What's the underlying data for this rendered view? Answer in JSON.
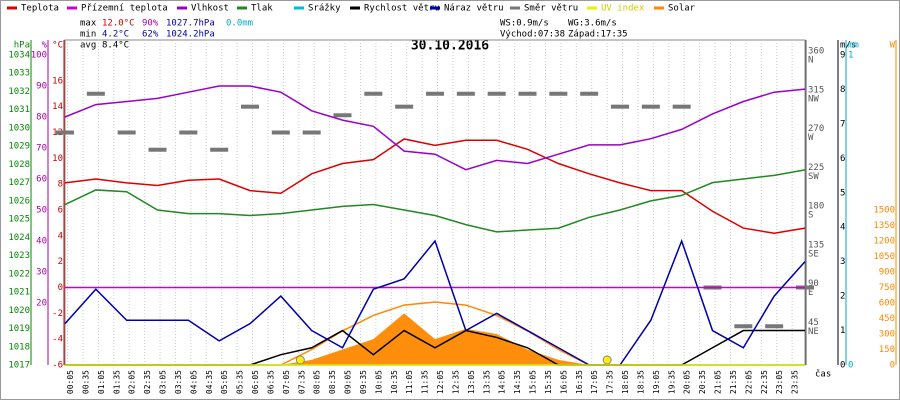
{
  "chart_data": {
    "type": "multi-line",
    "title": "30.10.2016",
    "x_label": "čas",
    "stats": {
      "max": {
        "label": "max",
        "t": "12.0°C",
        "h": "90%",
        "p": "1027.7hPa",
        "r": "0.0mm"
      },
      "min": {
        "label": "min",
        "t": "4.2°C",
        "h": "62%",
        "p": "1024.2hPa"
      },
      "avg": {
        "label": "avg",
        "t": "8.4°C"
      },
      "ws": "WS:0.9m/s",
      "wg": "WG:3.6m/s",
      "sunrise": "Východ:07:38",
      "sunset": "Západ:17:35"
    },
    "sunrise_x": 7.633,
    "sunset_x": 17.583,
    "xlim": [
      0,
      24
    ],
    "xticks": [
      {
        "value": 0.083,
        "label": "00:05"
      },
      {
        "value": 0.583,
        "label": "00:35"
      },
      {
        "value": 1.083,
        "label": "01:05"
      },
      {
        "value": 1.583,
        "label": "01:35"
      },
      {
        "value": 2.083,
        "label": "02:05"
      },
      {
        "value": 2.583,
        "label": "02:35"
      },
      {
        "value": 3.083,
        "label": "03:05"
      },
      {
        "value": 3.583,
        "label": "03:35"
      },
      {
        "value": 4.083,
        "label": "04:05"
      },
      {
        "value": 4.583,
        "label": "04:35"
      },
      {
        "value": 5.083,
        "label": "05:05"
      },
      {
        "value": 5.583,
        "label": "05:35"
      },
      {
        "value": 6.083,
        "label": "06:05"
      },
      {
        "value": 6.583,
        "label": "06:35"
      },
      {
        "value": 7.083,
        "label": "07:05"
      },
      {
        "value": 7.583,
        "label": "07:35"
      },
      {
        "value": 8.083,
        "label": "08:05"
      },
      {
        "value": 8.583,
        "label": "08:35"
      },
      {
        "value": 9.083,
        "label": "09:05"
      },
      {
        "value": 9.583,
        "label": "09:35"
      },
      {
        "value": 10.083,
        "label": "10:05"
      },
      {
        "value": 10.583,
        "label": "10:35"
      },
      {
        "value": 11.083,
        "label": "11:05"
      },
      {
        "value": 11.583,
        "label": "11:35"
      },
      {
        "value": 12.083,
        "label": "12:05"
      },
      {
        "value": 12.583,
        "label": "12:35"
      },
      {
        "value": 13.083,
        "label": "13:05"
      },
      {
        "value": 13.583,
        "label": "13:35"
      },
      {
        "value": 14.083,
        "label": "14:05"
      },
      {
        "value": 14.583,
        "label": "14:35"
      },
      {
        "value": 15.083,
        "label": "15:05"
      },
      {
        "value": 15.583,
        "label": "15:35"
      },
      {
        "value": 16.083,
        "label": "16:05"
      },
      {
        "value": 16.583,
        "label": "16:35"
      },
      {
        "value": 17.083,
        "label": "17:05"
      },
      {
        "value": 17.583,
        "label": "17:35"
      },
      {
        "value": 18.083,
        "label": "18:05"
      },
      {
        "value": 18.583,
        "label": "18:35"
      },
      {
        "value": 19.083,
        "label": "19:05"
      },
      {
        "value": 19.583,
        "label": "19:35"
      },
      {
        "value": 20.083,
        "label": "20:05"
      },
      {
        "value": 20.583,
        "label": "20:35"
      },
      {
        "value": 21.083,
        "label": "21:05"
      },
      {
        "value": 21.583,
        "label": "21:35"
      },
      {
        "value": 22.083,
        "label": "22:05"
      },
      {
        "value": 22.583,
        "label": "22:35"
      },
      {
        "value": 23.083,
        "label": "23:05"
      },
      {
        "value": 23.583,
        "label": "23:35"
      }
    ],
    "axes": [
      {
        "unit": "hPa",
        "color": "#008800",
        "lim": [
          1017,
          1034
        ],
        "ticks": [
          1017,
          1018,
          1019,
          1020,
          1021,
          1022,
          1023,
          1024,
          1025,
          1026,
          1027,
          1028,
          1029,
          1030,
          1031,
          1032,
          1033,
          1034
        ]
      },
      {
        "unit": "%",
        "color": "#aa00aa",
        "lim": [
          0,
          100
        ],
        "ticks": [
          20,
          30,
          40,
          50,
          60,
          70,
          80,
          90,
          100
        ]
      },
      {
        "unit": "°C",
        "color": "#cc0000",
        "lim": [
          -6,
          18
        ],
        "ticks": [
          -6,
          -4,
          -2,
          0,
          2,
          4,
          6,
          8,
          10,
          12,
          14,
          16
        ]
      },
      {
        "unit": "",
        "color": "#555555",
        "lim": [
          0,
          360
        ],
        "ticks": [
          {
            "value": 45,
            "label": "45",
            "dir": "NE"
          },
          {
            "value": 90,
            "label": "90",
            "dir": "E"
          },
          {
            "value": 135,
            "label": "135",
            "dir": "SE"
          },
          {
            "value": 180,
            "label": "180",
            "dir": "S"
          },
          {
            "value": 225,
            "label": "225",
            "dir": "SW"
          },
          {
            "value": 270,
            "label": "270",
            "dir": "W"
          },
          {
            "value": 315,
            "label": "315",
            "dir": "NW"
          },
          {
            "value": 360,
            "label": "360",
            "dir": "N"
          }
        ]
      },
      {
        "unit": "m/s",
        "color": "#000000",
        "lim": [
          0,
          9
        ],
        "ticks": [
          0,
          1,
          2,
          3,
          4,
          5,
          6,
          7,
          8,
          9
        ]
      },
      {
        "unit": "mm",
        "color": "#00aacc",
        "lim": [
          0,
          1
        ],
        "ticks": [
          0,
          1
        ]
      },
      {
        "unit": "W",
        "color": "#ff8800",
        "lim": [
          0,
          3000
        ],
        "ticks": [
          0,
          150,
          300,
          450,
          600,
          750,
          900,
          1050,
          1200,
          1350,
          1500
        ]
      }
    ],
    "x": [
      0,
      1,
      2,
      3,
      4,
      5,
      6,
      7,
      8,
      9,
      10,
      11,
      12,
      13,
      14,
      15,
      16,
      17,
      18,
      19,
      20,
      21,
      22,
      23,
      24
    ],
    "series": [
      {
        "name": "Teplota",
        "color": "#dd0000",
        "axis": 2,
        "values": [
          8.1,
          8.4,
          8.1,
          7.9,
          8.3,
          8.4,
          7.5,
          7.3,
          8.8,
          9.6,
          9.9,
          11.5,
          11.0,
          11.4,
          11.4,
          10.7,
          9.6,
          8.8,
          8.1,
          7.5,
          7.5,
          5.9,
          4.6,
          4.2,
          4.6
        ]
      },
      {
        "name": "Přízemní teplota",
        "color": "#cc00cc",
        "axis": 2,
        "values": [
          0,
          0,
          0,
          0,
          0,
          0,
          0,
          0,
          0,
          0,
          0,
          0,
          0,
          0,
          0,
          0,
          0,
          0,
          0,
          0,
          0,
          0,
          0,
          0,
          0
        ]
      },
      {
        "name": "Vlhkost",
        "color": "#9900cc",
        "axis": 1,
        "values": [
          80,
          84,
          85,
          86,
          88,
          90,
          90,
          88,
          82,
          79,
          77,
          69,
          68,
          63,
          66,
          65,
          68,
          71,
          71,
          73,
          76,
          81,
          85,
          88,
          89
        ]
      },
      {
        "name": "Tlak",
        "color": "#228822",
        "axis": 0,
        "values": [
          1025.8,
          1026.6,
          1026.5,
          1025.5,
          1025.3,
          1025.3,
          1025.2,
          1025.3,
          1025.5,
          1025.7,
          1025.8,
          1025.5,
          1025.2,
          1024.7,
          1024.3,
          1024.4,
          1024.5,
          1025.1,
          1025.5,
          1026.0,
          1026.3,
          1027.0,
          1027.2,
          1027.4,
          1027.7
        ]
      },
      {
        "name": "Srážky",
        "color": "#00bbdd",
        "axis": 5,
        "values": [
          0,
          0,
          0,
          0,
          0,
          0,
          0,
          0,
          0,
          0,
          0,
          0,
          0,
          0,
          0,
          0,
          0,
          0,
          0,
          0,
          0,
          0,
          0,
          0,
          0
        ]
      },
      {
        "name": "Rychlost větru",
        "color": "#000000",
        "axis": 4,
        "values": [
          0,
          0,
          0,
          0,
          0,
          0,
          0,
          0.3,
          0.5,
          1.0,
          0.3,
          1.0,
          0.5,
          1.0,
          0.8,
          0.5,
          0,
          0,
          0,
          0,
          0,
          0.5,
          1.0,
          1.0,
          1.0
        ]
      },
      {
        "name": "Náraz větru",
        "color": "#0000aa",
        "axis": 4,
        "values": [
          1.2,
          2.2,
          1.3,
          1.3,
          1.3,
          0.7,
          1.2,
          2.0,
          1.0,
          0.5,
          2.2,
          2.5,
          3.6,
          1.0,
          1.5,
          1.0,
          0.5,
          0,
          0,
          1.3,
          3.6,
          1.0,
          0.5,
          2.0,
          3.0
        ]
      },
      {
        "name": "Směr větru",
        "color": "#777777",
        "axis": 3,
        "style": "dash",
        "values": [
          270,
          315,
          270,
          250,
          270,
          250,
          300,
          270,
          270,
          290,
          315,
          300,
          315,
          315,
          315,
          315,
          315,
          315,
          300,
          300,
          300,
          90,
          45,
          45,
          90
        ]
      },
      {
        "name": "UV index",
        "color": "#eeee00",
        "axis": 4,
        "values": [
          0,
          0,
          0,
          0,
          0,
          0,
          0,
          0,
          0,
          0,
          0,
          0,
          0,
          0,
          0,
          0,
          0,
          0,
          0,
          0,
          0,
          0,
          0,
          0,
          0
        ]
      },
      {
        "name": "Solar",
        "color": "#ff8800",
        "axis": 6,
        "style": "area",
        "values": [
          0,
          0,
          0,
          0,
          0,
          0,
          0,
          0,
          50,
          150,
          250,
          500,
          250,
          350,
          300,
          150,
          50,
          0,
          0,
          0,
          0,
          0,
          0,
          0,
          0
        ],
        "clear_sky_values": [
          0,
          0,
          0,
          0,
          0,
          0,
          0,
          0,
          150,
          330,
          480,
          580,
          610,
          580,
          480,
          330,
          150,
          0,
          0,
          0,
          0,
          0,
          0,
          0,
          0
        ]
      }
    ]
  }
}
